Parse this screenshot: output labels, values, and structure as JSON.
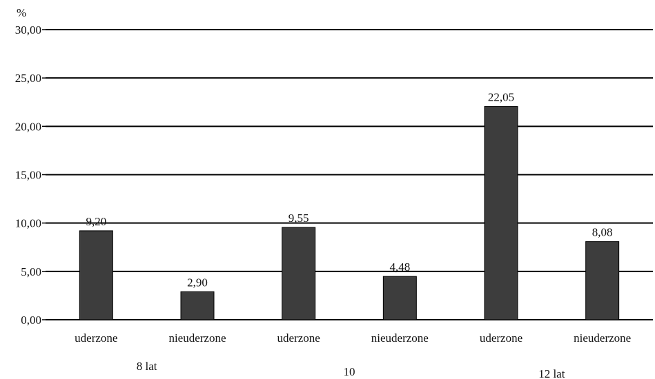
{
  "chart_data": {
    "type": "bar",
    "y_unit": "%",
    "ylim": [
      0,
      30
    ],
    "yticks": [
      "0,00",
      "5,00",
      "10,00",
      "15,00",
      "20,00",
      "25,00",
      "30,00"
    ],
    "ytick_values": [
      0,
      5,
      10,
      15,
      20,
      25,
      30
    ],
    "grid": true,
    "legend": "none",
    "categories": [
      "uderzone",
      "nieuderzone",
      "uderzone",
      "nieuderzone",
      "uderzone",
      "nieuderzone"
    ],
    "groups": [
      "8 lat",
      "10",
      "12 lat"
    ],
    "values": [
      9.2,
      2.9,
      9.55,
      4.48,
      22.05,
      8.08
    ],
    "value_labels": [
      "9,20",
      "2,90",
      "9,55",
      "4,48",
      "22,05",
      "8,08"
    ],
    "bar_color": "#3d3d3d"
  }
}
